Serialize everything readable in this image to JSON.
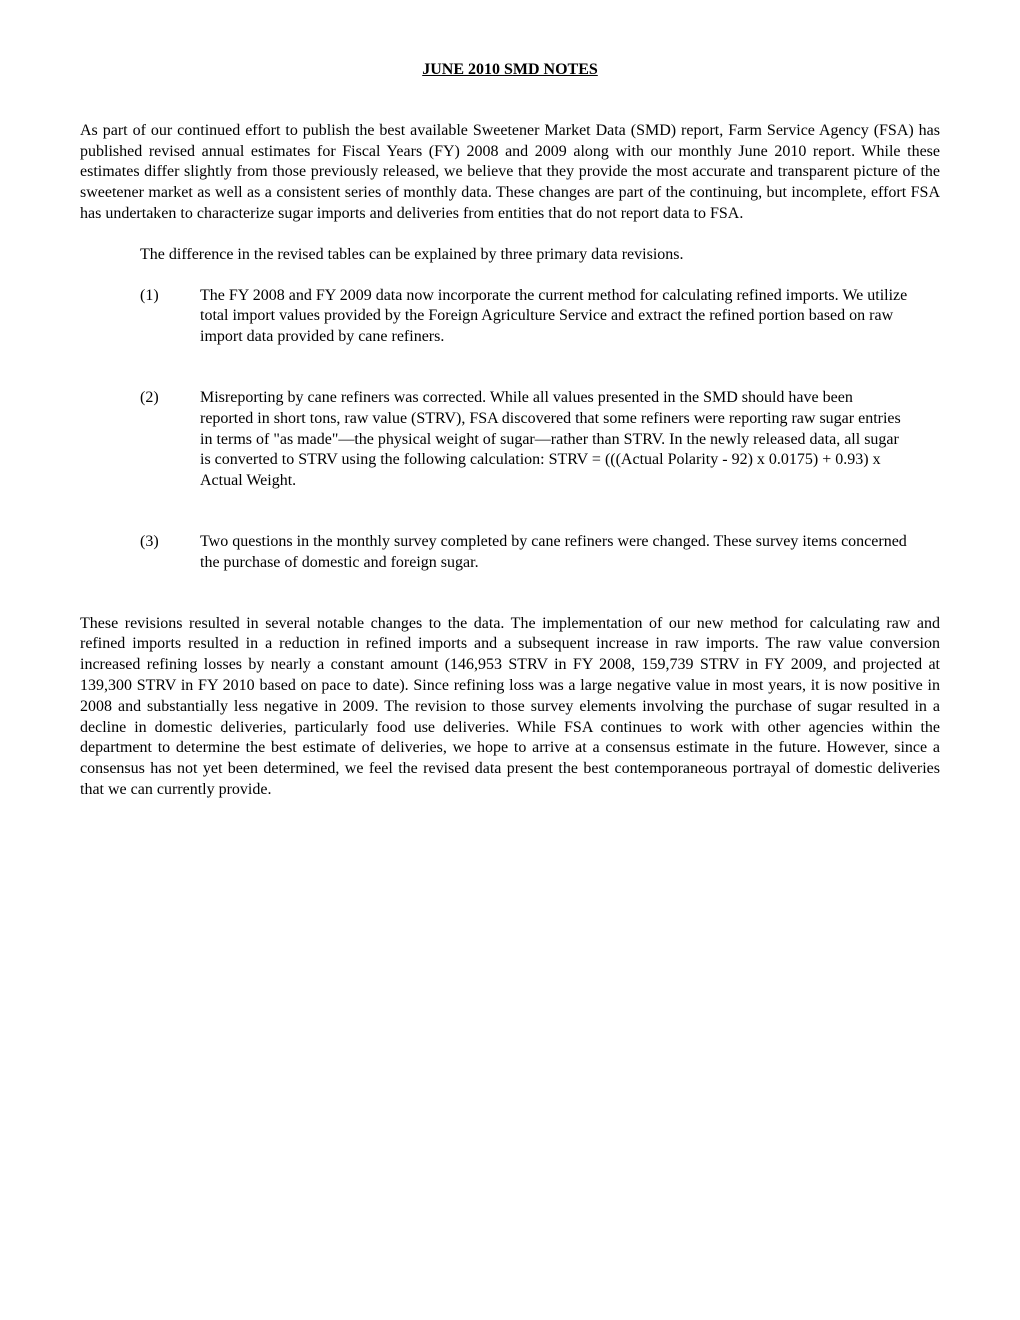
{
  "title": "JUNE 2010 SMD NOTES",
  "intro": "As part of our continued effort to publish the best available Sweetener Market Data (SMD) report, Farm Service Agency (FSA) has published revised annual estimates for Fiscal Years (FY) 2008 and 2009 along with our monthly June 2010 report.  While these estimates differ slightly from those previously released, we believe that they provide the most accurate and transparent picture of the sweetener market as well as a consistent series of monthly data.  These changes are part of the continuing, but incomplete, effort FSA has undertaken to characterize sugar imports and deliveries from entities that do not report data to FSA.",
  "leadIn": "The difference in the revised tables can be explained by three primary data revisions.",
  "items": [
    {
      "num": "(1)",
      "text": "The FY 2008 and FY 2009 data now incorporate the current method for calculating refined imports.  We utilize total import values provided by the Foreign Agriculture Service and extract the refined portion based on raw import data provided by cane refiners."
    },
    {
      "num": "(2)",
      "text": "Misreporting by cane refiners was corrected.  While all values presented in the SMD should have been reported in short tons, raw value (STRV), FSA discovered that some refiners were reporting raw sugar entries in terms of \"as made\"—the physical weight of sugar—rather than STRV. In the newly released data, all sugar is converted to STRV using the following calculation: STRV = (((Actual Polarity - 92) x 0.0175) + 0.93) x Actual Weight."
    },
    {
      "num": "(3)",
      "text": "Two questions in the monthly survey completed by cane refiners were changed. These survey items concerned the purchase of domestic and foreign sugar."
    }
  ],
  "conclusion": "These revisions resulted in several notable changes to the data. The implementation of our new method for calculating raw and refined imports resulted in a reduction in refined imports and a subsequent increase in raw imports.  The raw value conversion increased refining losses by nearly a constant amount (146,953 STRV in FY 2008, 159,739 STRV in FY 2009, and projected at 139,300 STRV in FY 2010 based on pace to date).  Since refining loss was a large negative value in most years, it is now positive in 2008 and substantially less negative in 2009. The revision to those survey elements involving the purchase of sugar resulted in a decline in domestic deliveries, particularly food use deliveries.  While FSA continues to work with other agencies within the department to determine the best estimate of deliveries, we hope to arrive at a consensus estimate in the future.  However, since a consensus has not yet been determined, we feel the revised data present the best contemporaneous portrayal of domestic deliveries that we can currently provide."
}
